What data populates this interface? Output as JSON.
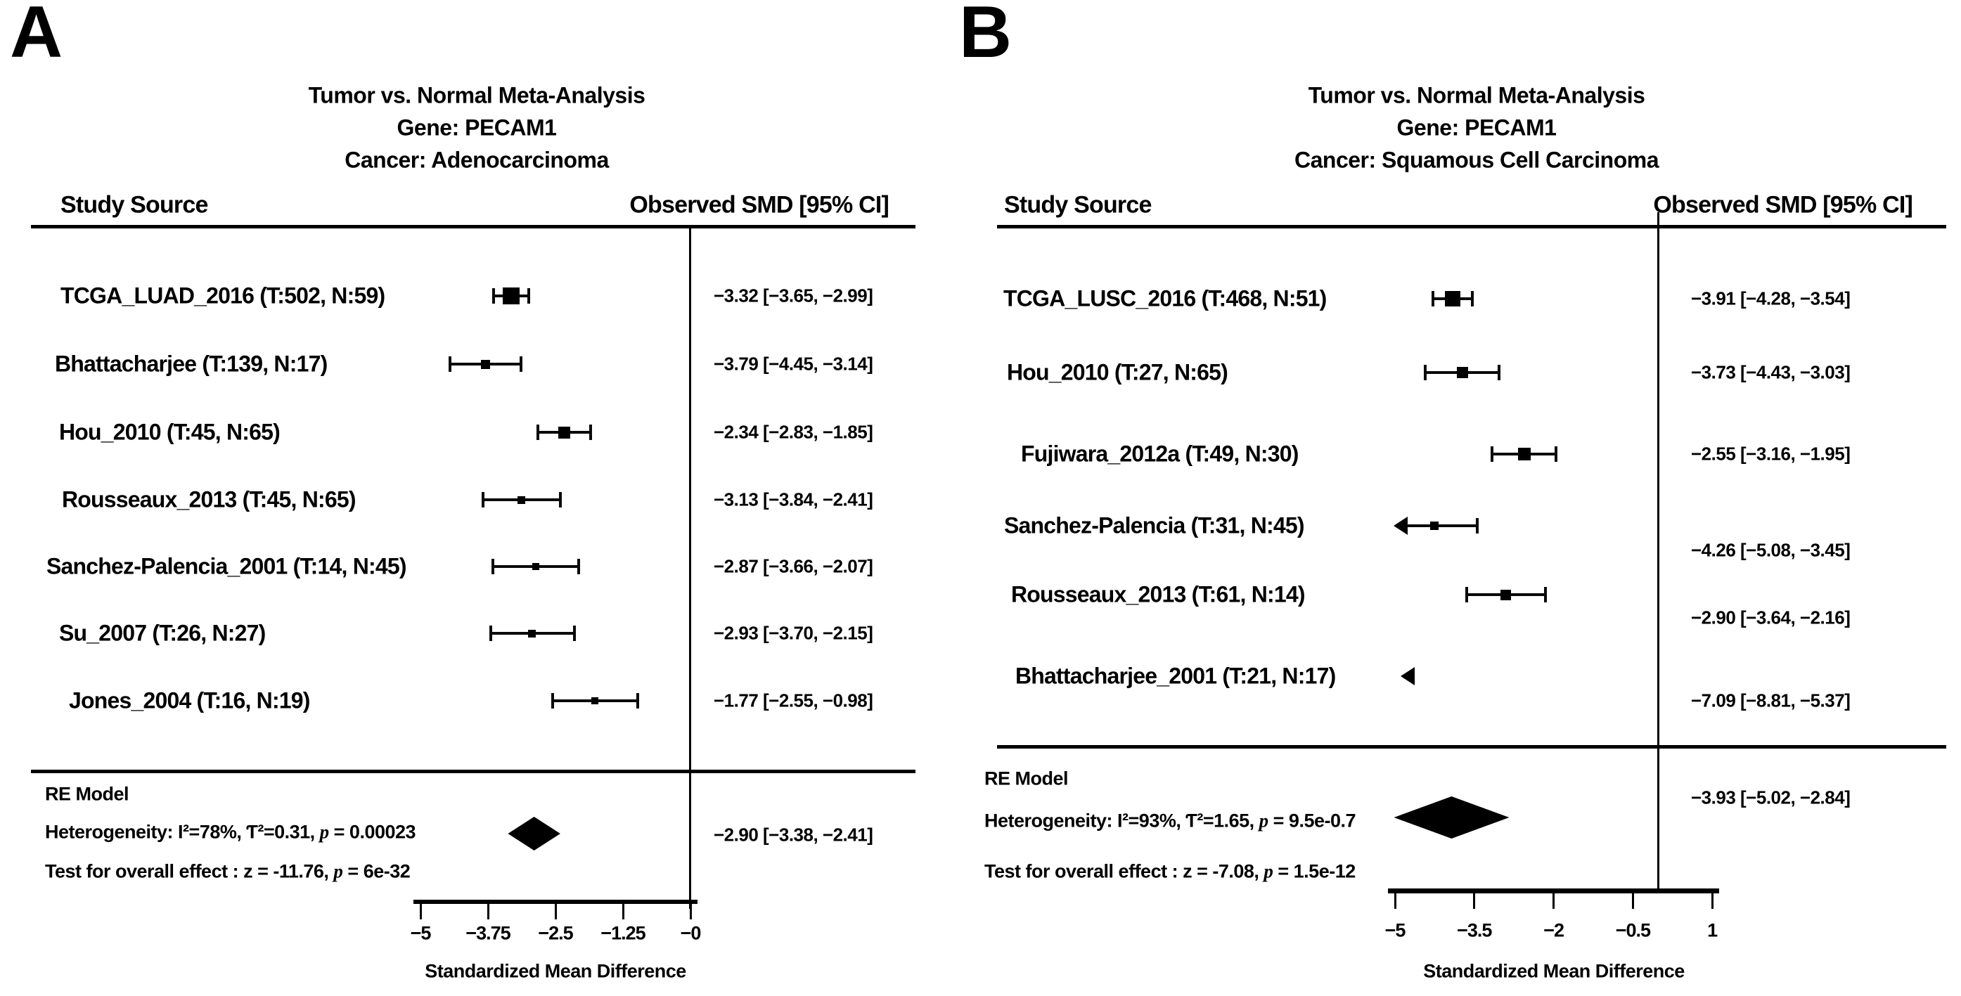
{
  "figure_bg": "#ffffff",
  "ink_color": "#000000",
  "chart_data": [
    {
      "type": "scatter",
      "subtype": "forest_plot",
      "panel_label": "A",
      "title_lines": [
        "Tumor vs. Normal Meta-Analysis",
        "Gene: PECAM1",
        "Cancer: Adenocarcinoma"
      ],
      "columns": {
        "study": "Study Source",
        "smd": "Observed SMD [95% CI]"
      },
      "xlabel": "Standardized Mean Difference",
      "x_axis": {
        "min": -5,
        "max": 0,
        "refline": 0,
        "tick_values": [
          -5,
          -3.75,
          -2.5,
          -1.25,
          0
        ],
        "tick_labels": [
          "−5",
          "−3.75",
          "−2.5",
          "−1.25",
          "−0"
        ]
      },
      "studies": [
        {
          "name": "TCGA_LUAD_2016 (T:502, N:59)",
          "smd": -3.32,
          "lo": -3.65,
          "hi": -2.99,
          "ci_text": "−3.32 [−3.65, −2.99]",
          "marker_px": 24,
          "clip": null
        },
        {
          "name": "Bhattacharjee (T:139, N:17)",
          "smd": -3.79,
          "lo": -4.45,
          "hi": -3.14,
          "ci_text": "−3.79 [−4.45, −3.14]",
          "marker_px": 13,
          "clip": null
        },
        {
          "name": "Hou_2010 (T:45, N:65)",
          "smd": -2.34,
          "lo": -2.83,
          "hi": -1.85,
          "ci_text": "−2.34 [−2.83, −1.85]",
          "marker_px": 17,
          "clip": null
        },
        {
          "name": "Rousseaux_2013 (T:45, N:65)",
          "smd": -3.13,
          "lo": -3.84,
          "hi": -2.41,
          "ci_text": "−3.13 [−3.84, −2.41]",
          "marker_px": 11,
          "clip": null
        },
        {
          "name": "Sanchez-Palencia_2001 (T:14, N:45)",
          "smd": -2.87,
          "lo": -3.66,
          "hi": -2.07,
          "ci_text": "−2.87 [−3.66, −2.07]",
          "marker_px": 10,
          "clip": null
        },
        {
          "name": "Su_2007 (T:26, N:27)",
          "smd": -2.93,
          "lo": -3.7,
          "hi": -2.15,
          "ci_text": "−2.93 [−3.70, −2.15]",
          "marker_px": 11,
          "clip": null
        },
        {
          "name": "Jones_2004 (T:16, N:19)",
          "smd": -1.77,
          "lo": -2.55,
          "hi": -0.98,
          "ci_text": "−1.77 [−2.55, −0.98]",
          "marker_px": 10,
          "clip": null
        }
      ],
      "summary": {
        "label": "RE Model",
        "smd": -2.9,
        "lo": -3.38,
        "hi": -2.41,
        "ci_text": "−2.90 [−3.38, −2.41]",
        "heterogeneity_pre": "Heterogeneity: I²=78%, Ƭ²=0.31, ",
        "p_symbol": "p",
        "heterogeneity_post": " = 0.00023",
        "test_pre": "Test for overall effect : z = -11.76,  ",
        "test_post": " = 6e-32"
      }
    },
    {
      "type": "scatter",
      "subtype": "forest_plot",
      "panel_label": "B",
      "title_lines": [
        "Tumor vs. Normal Meta-Analysis",
        "Gene: PECAM1",
        "Cancer: Squamous Cell Carcinoma"
      ],
      "columns": {
        "study": "Study Source",
        "smd": "Observed SMD [95% CI]"
      },
      "xlabel": "Standardized Mean Difference",
      "x_axis": {
        "min": -5,
        "max": 1,
        "refline": 0,
        "tick_values": [
          -5,
          -3.5,
          -2,
          -0.5,
          1
        ],
        "tick_labels": [
          "−5",
          "−3.5",
          "−2",
          "−0.5",
          "1"
        ]
      },
      "studies": [
        {
          "name": "TCGA_LUSC_2016 (T:468, N:51)",
          "smd": -3.91,
          "lo": -4.28,
          "hi": -3.54,
          "ci_text": "−3.91 [−4.28, −3.54]",
          "marker_px": 22,
          "clip": null
        },
        {
          "name": "Hou_2010 (T:27, N:65)",
          "smd": -3.73,
          "lo": -4.43,
          "hi": -3.03,
          "ci_text": "−3.73 [−4.43, −3.03]",
          "marker_px": 16,
          "clip": null
        },
        {
          "name": "Fujiwara_2012a (T:49, N:30)",
          "smd": -2.55,
          "lo": -3.16,
          "hi": -1.95,
          "ci_text": "−2.55 [−3.16, −1.95]",
          "marker_px": 18,
          "clip": null
        },
        {
          "name": "Sanchez-Palencia (T:31, N:45)",
          "smd": -4.26,
          "lo": -5.08,
          "hi": -3.45,
          "ci_text": "−4.26 [−5.08, −3.45]",
          "marker_px": 12,
          "clip": "partial-left"
        },
        {
          "name": "Rousseaux_2013 (T:61, N:14)",
          "smd": -2.9,
          "lo": -3.64,
          "hi": -2.16,
          "ci_text": "−2.90 [−3.64, −2.16]",
          "marker_px": 15,
          "clip": null
        },
        {
          "name": "Bhattacharjee_2001 (T:21, N:17)",
          "smd": -7.09,
          "lo": -8.81,
          "hi": -5.37,
          "ci_text": "−7.09 [−8.81, −5.37]",
          "marker_px": 0,
          "clip": "full-left"
        }
      ],
      "summary": {
        "label": "RE Model",
        "smd": -3.93,
        "lo": -5.02,
        "hi": -2.84,
        "ci_text": "−3.93 [−5.02, −2.84]",
        "heterogeneity_pre": "Heterogeneity: I²=93%, Ƭ²=1.65, ",
        "p_symbol": "p",
        "heterogeneity_post": " = 9.5e-0.7",
        "test_pre": "Test for overall effect : z = -7.08,  ",
        "test_post": " = 1.5e-12"
      }
    }
  ]
}
